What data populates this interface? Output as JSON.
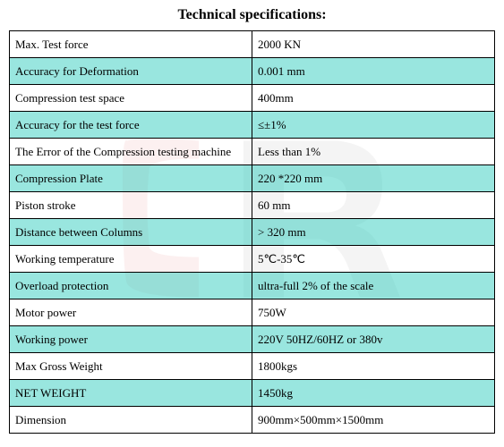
{
  "title": "Technical specifications:",
  "table": {
    "alt_color": "#77ddd4",
    "border_color": "#000000",
    "rows": [
      {
        "label": "Max. Test force",
        "value": "2000 KN"
      },
      {
        "label": "Accuracy for Deformation",
        "value": "0.001 mm"
      },
      {
        "label": "Compression test space",
        "value": "400mm"
      },
      {
        "label": "Accuracy for the test force",
        "value": "≤±1%"
      },
      {
        "label": "The Error of the Compression testing machine",
        "value": "Less than 1%"
      },
      {
        "label": "Compression Plate",
        "value": "220 *220 mm"
      },
      {
        "label": "Piston stroke",
        "value": "60 mm"
      },
      {
        "label": "Distance between Columns",
        "value": "> 320 mm"
      },
      {
        "label": "Working temperature",
        "value": "5℃-35℃"
      },
      {
        "label": "Overload protection",
        "value": "ultra-full 2% of the scale"
      },
      {
        "label": "Motor power",
        "value": "750W"
      },
      {
        "label": "Working power",
        "value": "220V 50HZ/60HZ or 380v"
      },
      {
        "label": "Max Gross Weight",
        "value": "1800kgs"
      },
      {
        "label": "NET WEIGHT",
        "value": "1450kg"
      },
      {
        "label": "Dimension",
        "value": "900mm×500mm×1500mm"
      }
    ]
  },
  "watermark": {
    "red": "#d94c4c",
    "gray": "#808080"
  }
}
